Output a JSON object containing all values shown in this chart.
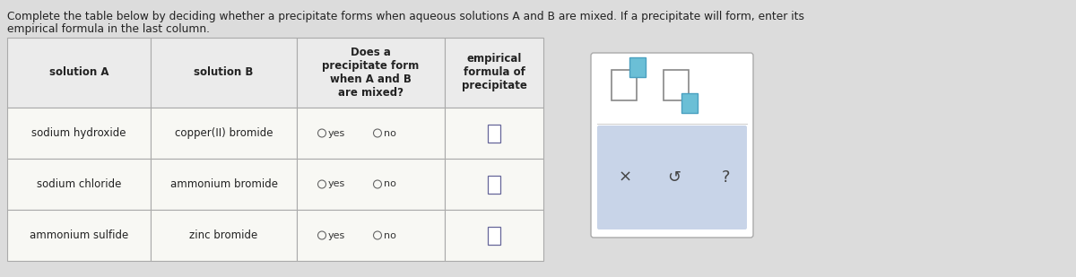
{
  "title_text1": "Complete the table below by deciding whether a precipitate forms when aqueous solutions A and B are mixed. If a precipitate will form, enter its",
  "title_text2": "empirical formula in the last column.",
  "bg_color": "#dcdcdc",
  "cell_fill": "#f5f5f0",
  "border_color": "#aaaaaa",
  "col_headers": [
    "solution A",
    "solution B",
    "Does a\nprecipitate form\nwhen A and B\nare mixed?",
    "empirical\nformula of\nprecipitate"
  ],
  "rows": [
    [
      "sodium hydroxide",
      "copper(II) bromide"
    ],
    [
      "sodium chloride",
      "ammonium bromide"
    ],
    [
      "ammonium sulfide",
      "zinc bromide"
    ]
  ],
  "font_size": 8.5,
  "header_font_size": 8.5
}
